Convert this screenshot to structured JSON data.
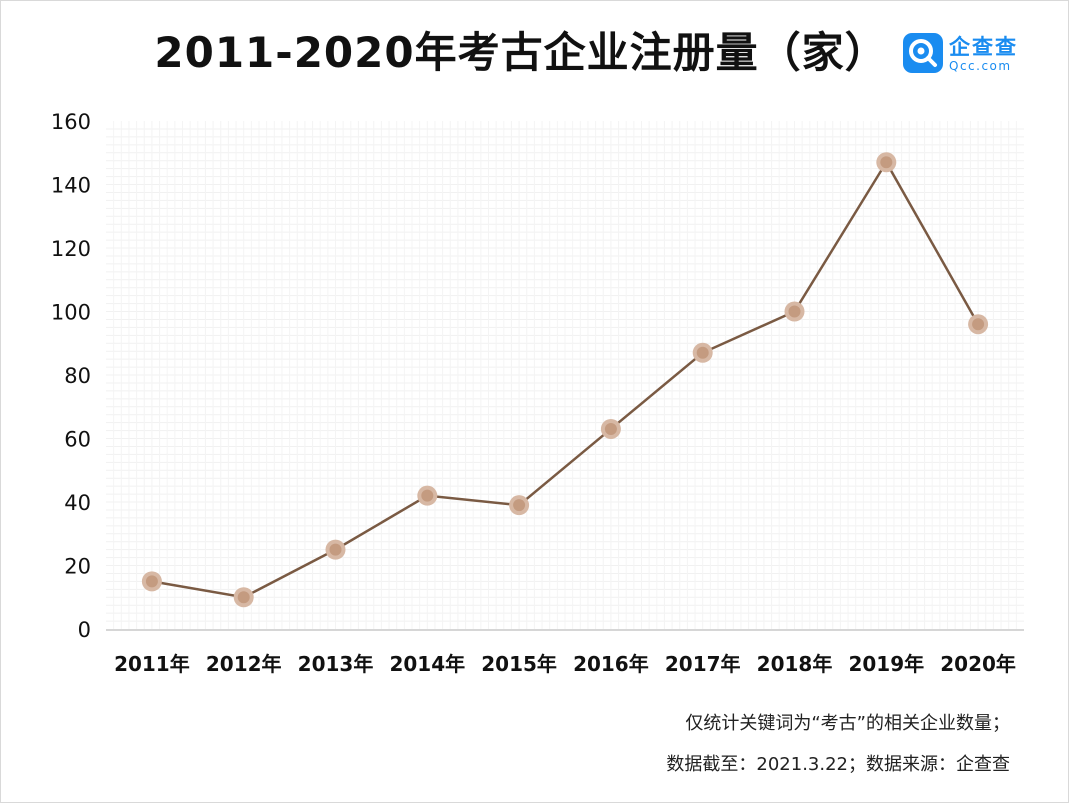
{
  "header": {
    "title": "2011-2020年考古企业注册量（家）",
    "logo_name": "企查查",
    "logo_domain": "Qcc.com",
    "logo_icon": "qcc-magnifier-icon"
  },
  "footnotes": {
    "line1": "仅统计关键词为“考古”的相关企业数量；",
    "line2": "数据截至：2021.3.22；数据来源：企查查"
  },
  "colors": {
    "line": "#7a5a43",
    "marker_outer": "#d7b8a4",
    "marker_inner": "#c49b80",
    "brand": "#1a8cf0"
  },
  "chart_data": {
    "type": "line",
    "title": "2011-2020年考古企业注册量（家）",
    "xlabel": "",
    "ylabel": "",
    "categories": [
      "2011年",
      "2012年",
      "2013年",
      "2014年",
      "2015年",
      "2016年",
      "2017年",
      "2018年",
      "2019年",
      "2020年"
    ],
    "series": [
      {
        "values": [
          15,
          10,
          25,
          42,
          39,
          63,
          87,
          100,
          147,
          96
        ]
      }
    ],
    "ylim": [
      0,
      160
    ],
    "yticks": [
      "0",
      "20",
      "40",
      "60",
      "80",
      "100",
      "120",
      "140",
      "160"
    ],
    "grid": true,
    "legend": "none"
  }
}
